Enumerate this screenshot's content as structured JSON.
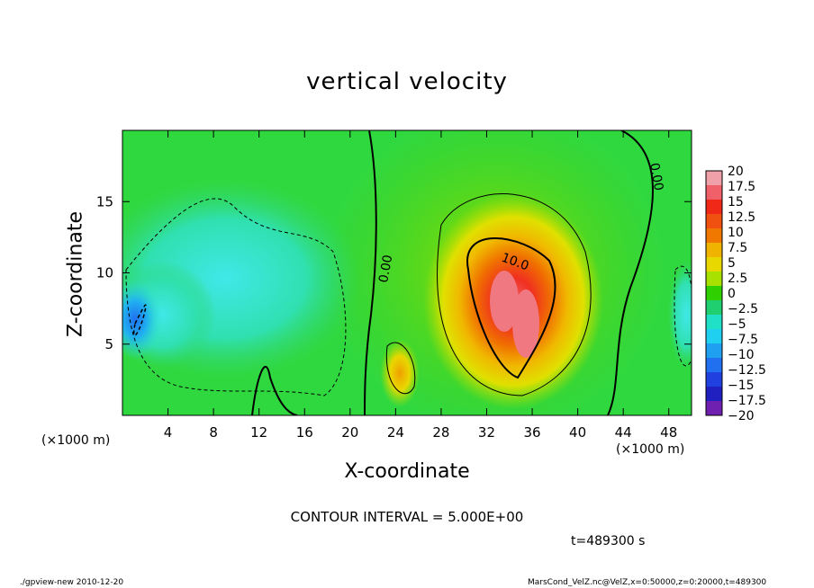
{
  "chart_data": {
    "type": "heatmap",
    "title": "vertical velocity",
    "xlabel": "X-coordinate",
    "ylabel": "Z-coordinate",
    "x_unit": "(×1000 m)",
    "xlim": [
      0,
      50
    ],
    "ylim": [
      0,
      20
    ],
    "x_ticks": [
      4,
      8,
      12,
      16,
      20,
      24,
      28,
      32,
      36,
      40,
      44,
      48
    ],
    "y_ticks": [
      5,
      10,
      15
    ],
    "colorbar": {
      "levels": [
        20,
        17.5,
        15,
        12.5,
        10,
        7.5,
        5,
        2.5,
        0,
        -2.5,
        -5,
        -7.5,
        -10,
        -12.5,
        -15,
        -17.5,
        -20
      ],
      "labels": [
        "20",
        "17.5",
        "15",
        "12.5",
        "10",
        "7.5",
        "5",
        "2.5",
        "0",
        "−2.5",
        "−5",
        "−7.5",
        "−10",
        "−12.5",
        "−15",
        "−17.5",
        "−20"
      ],
      "colors": [
        "#f0a0a8",
        "#f06068",
        "#f02818",
        "#f05010",
        "#f07800",
        "#f0b400",
        "#e8d800",
        "#a8e000",
        "#30d000",
        "#20d070",
        "#20e0c8",
        "#20d0f0",
        "#20a0f0",
        "#2070f0",
        "#2040e0",
        "#2020c0",
        "#7020b0"
      ]
    },
    "contour_labels": [
      "10.0",
      "0.00",
      "0.00"
    ],
    "contour_interval": "CONTOUR INTERVAL = 5.000E+00",
    "time": "t=489300  s"
  },
  "footer": {
    "left": "./gpview-new   2010-12-20",
    "right": "MarsCond_VelZ.nc@VelZ,x=0:50000,z=0:20000,t=489300"
  }
}
